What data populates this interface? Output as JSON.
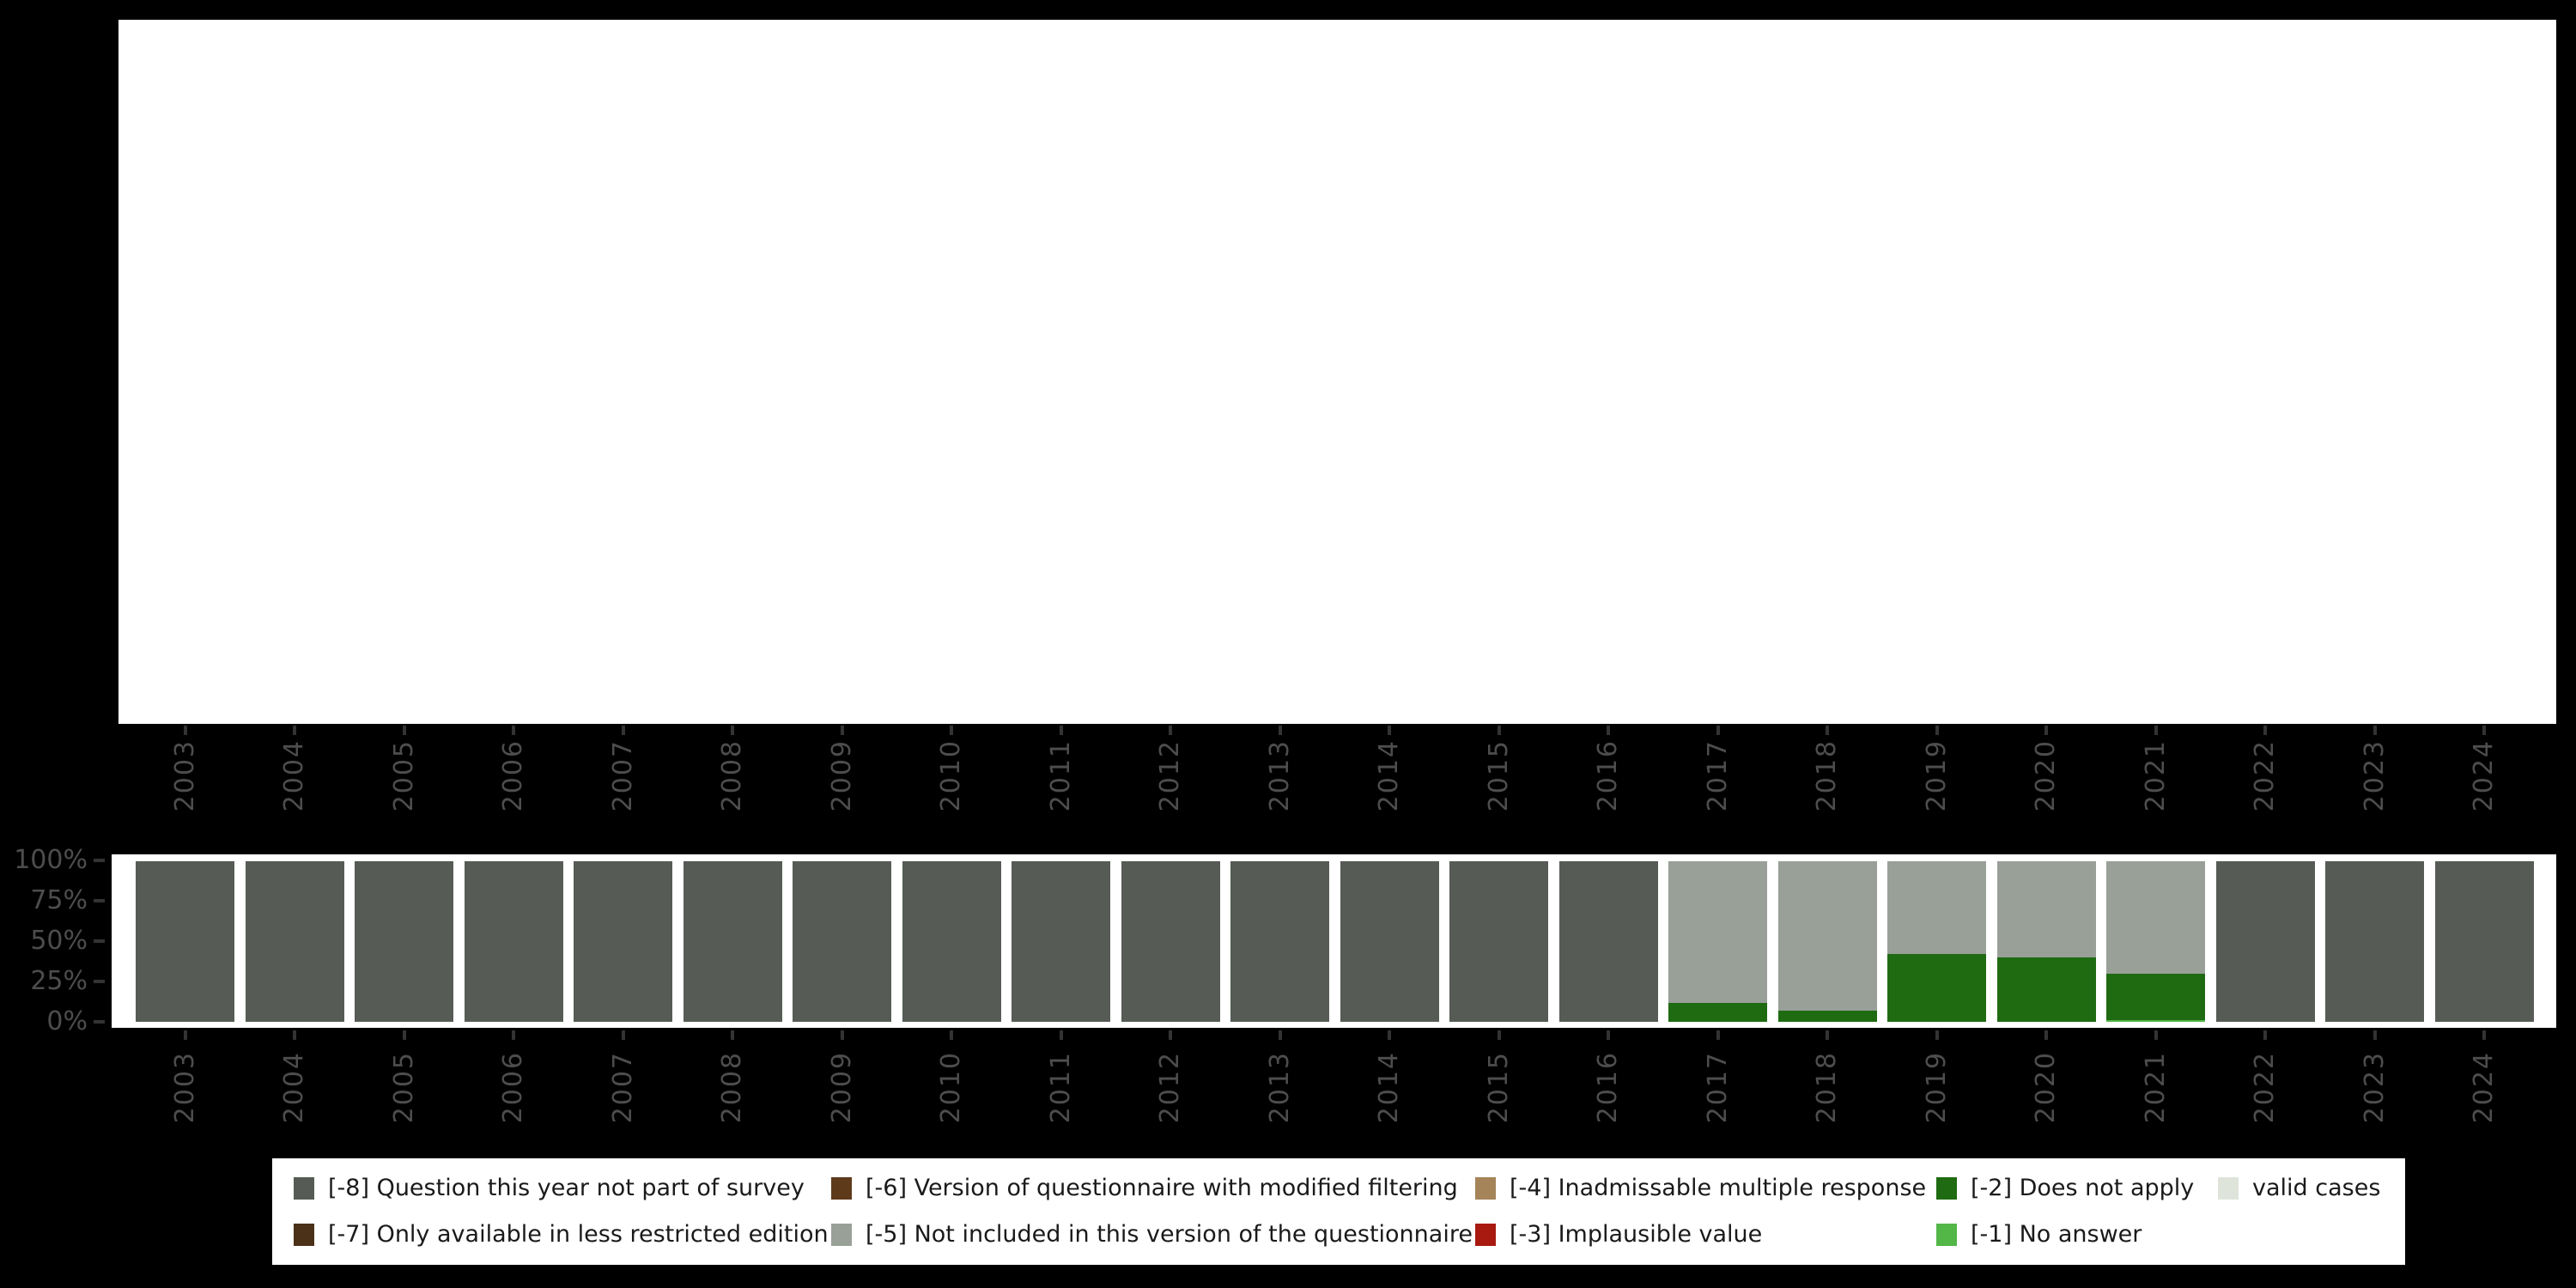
{
  "background_color": "#000000",
  "panel_color": "#ffffff",
  "axis": {
    "text_color": "#4d4d4d",
    "tick_color": "#333333"
  },
  "legend": {
    "order": [
      "-8",
      "-6",
      "-4",
      "-2",
      "valid",
      "-7",
      "-5",
      "-3",
      "-1"
    ]
  },
  "chart_data": {
    "type": "bar",
    "stacked": true,
    "orientation": "vertical",
    "title": "",
    "xlabel": "",
    "ylabel": "",
    "categories": [
      "2003",
      "2004",
      "2005",
      "2006",
      "2007",
      "2008",
      "2009",
      "2010",
      "2011",
      "2012",
      "2013",
      "2014",
      "2015",
      "2016",
      "2017",
      "2018",
      "2019",
      "2020",
      "2021",
      "2022",
      "2023",
      "2024"
    ],
    "unit": "percent",
    "ylim": [
      0,
      100
    ],
    "yticks": [
      "100%",
      "75%",
      "50%",
      "25%",
      "0%"
    ],
    "grid": false,
    "legend_position": "bottom",
    "top_panel_note": "empty white panel",
    "stack_order_bottom_to_top": [
      "-1",
      "-2",
      "-3",
      "-4",
      "-5",
      "-6",
      "-7",
      "-8",
      "valid"
    ],
    "series": [
      {
        "key": "-8",
        "name": "[-8] Question this year not part of survey",
        "color": "#565c55",
        "values": [
          100,
          100,
          100,
          100,
          100,
          100,
          100,
          100,
          100,
          100,
          100,
          100,
          100,
          100,
          0,
          0,
          0,
          0,
          0,
          100,
          100,
          100
        ]
      },
      {
        "key": "-7",
        "name": "[-7] Only available in less restricted edition",
        "color": "#4a3118",
        "values": [
          0,
          0,
          0,
          0,
          0,
          0,
          0,
          0,
          0,
          0,
          0,
          0,
          0,
          0,
          0,
          0,
          0,
          0,
          0,
          0,
          0,
          0
        ]
      },
      {
        "key": "-6",
        "name": "[-6] Version of questionnaire with modified filtering",
        "color": "#5e3a1b",
        "values": [
          0,
          0,
          0,
          0,
          0,
          0,
          0,
          0,
          0,
          0,
          0,
          0,
          0,
          0,
          0,
          0,
          0,
          0,
          0,
          0,
          0,
          0
        ]
      },
      {
        "key": "-5",
        "name": "[-5] Not included in this version of the questionnaire",
        "color": "#99a098",
        "values": [
          0,
          0,
          0,
          0,
          0,
          0,
          0,
          0,
          0,
          0,
          0,
          0,
          0,
          0,
          88,
          93,
          58,
          60,
          70,
          0,
          0,
          0
        ]
      },
      {
        "key": "-4",
        "name": "[-4] Inadmissable multiple response",
        "color": "#a5845a",
        "values": [
          0,
          0,
          0,
          0,
          0,
          0,
          0,
          0,
          0,
          0,
          0,
          0,
          0,
          0,
          0,
          0,
          0,
          0,
          0,
          0,
          0,
          0
        ]
      },
      {
        "key": "-3",
        "name": "[-3] Implausible value",
        "color": "#a81a10",
        "values": [
          0,
          0,
          0,
          0,
          0,
          0,
          0,
          0,
          0,
          0,
          0,
          0,
          0,
          0,
          0,
          0,
          0,
          0,
          0,
          0,
          0,
          0
        ]
      },
      {
        "key": "-2",
        "name": "[-2] Does not apply",
        "color": "#1f6b12",
        "values": [
          0,
          0,
          0,
          0,
          0,
          0,
          0,
          0,
          0,
          0,
          0,
          0,
          0,
          0,
          12,
          7,
          42,
          40,
          29,
          0,
          0,
          0
        ]
      },
      {
        "key": "-1",
        "name": "[-1] No answer",
        "color": "#53b748",
        "values": [
          0,
          0,
          0,
          0,
          0,
          0,
          0,
          0,
          0,
          0,
          0,
          0,
          0,
          0,
          0,
          0,
          0,
          0,
          1,
          0,
          0,
          0
        ]
      },
      {
        "key": "valid",
        "name": "valid cases",
        "color": "#dfe4db",
        "values": [
          0,
          0,
          0,
          0,
          0,
          0,
          0,
          0,
          0,
          0,
          0,
          0,
          0,
          0,
          0,
          0,
          0,
          0,
          0,
          0,
          0,
          0
        ]
      }
    ]
  }
}
